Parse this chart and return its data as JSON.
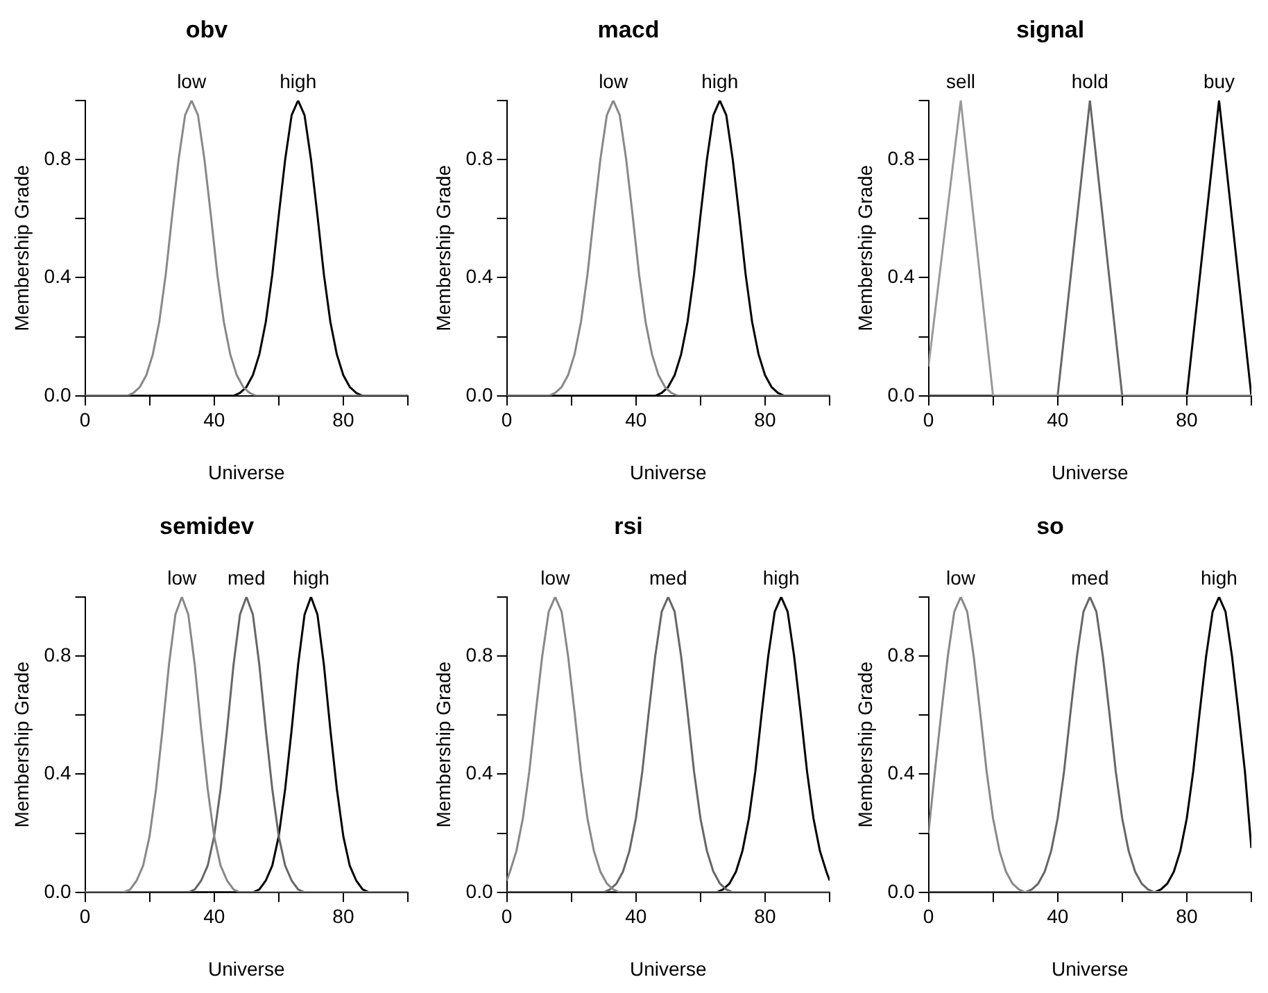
{
  "chart_data": [
    {
      "type": "line",
      "title": "obv",
      "xlabel": "Universe",
      "ylabel": "Membership Grade",
      "xlim": [
        0,
        100
      ],
      "ylim": [
        0,
        1
      ],
      "xticks": [
        0,
        {
          "value": 20,
          "label": null
        },
        40,
        {
          "value": 60,
          "label": null
        },
        80,
        {
          "value": 100,
          "label": null
        }
      ],
      "yticks": [
        {
          "value": 0,
          "label": "0.0"
        },
        {
          "value": 0.2,
          "label": null
        },
        {
          "value": 0.4,
          "label": "0.4"
        },
        {
          "value": 0.6,
          "label": null
        },
        {
          "value": 0.8,
          "label": "0.8"
        },
        {
          "value": 1,
          "label": null
        }
      ],
      "grid": false,
      "marker": "none",
      "series": [
        {
          "name": "low",
          "color": "#888888",
          "x": [
            0,
            13,
            15,
            17,
            19,
            21,
            23,
            25,
            27,
            29,
            31,
            33,
            35,
            37,
            39,
            41,
            43,
            45,
            47,
            49,
            51,
            53,
            100
          ],
          "values": [
            0,
            0,
            0.01,
            0.03,
            0.07,
            0.14,
            0.25,
            0.41,
            0.61,
            0.8,
            0.95,
            1,
            0.95,
            0.8,
            0.61,
            0.41,
            0.25,
            0.14,
            0.07,
            0.03,
            0.01,
            0,
            0
          ]
        },
        {
          "name": "high",
          "color": "#000000",
          "x": [
            0,
            46,
            48,
            50,
            52,
            54,
            56,
            58,
            60,
            62,
            64,
            66,
            68,
            70,
            72,
            74,
            76,
            78,
            80,
            82,
            84,
            86,
            100
          ],
          "values": [
            0,
            0,
            0.01,
            0.03,
            0.07,
            0.14,
            0.25,
            0.41,
            0.61,
            0.8,
            0.95,
            1,
            0.95,
            0.8,
            0.61,
            0.41,
            0.25,
            0.14,
            0.07,
            0.03,
            0.01,
            0,
            0
          ]
        }
      ]
    },
    {
      "type": "line",
      "title": "macd",
      "xlabel": "Universe",
      "ylabel": "Membership Grade",
      "xlim": [
        0,
        100
      ],
      "ylim": [
        0,
        1
      ],
      "xticks": [
        0,
        {
          "value": 20,
          "label": null
        },
        40,
        {
          "value": 60,
          "label": null
        },
        80,
        {
          "value": 100,
          "label": null
        }
      ],
      "yticks": [
        {
          "value": 0,
          "label": "0.0"
        },
        {
          "value": 0.2,
          "label": null
        },
        {
          "value": 0.4,
          "label": "0.4"
        },
        {
          "value": 0.6,
          "label": null
        },
        {
          "value": 0.8,
          "label": "0.8"
        },
        {
          "value": 1,
          "label": null
        }
      ],
      "grid": false,
      "marker": "none",
      "series": [
        {
          "name": "low",
          "color": "#888888",
          "x": [
            0,
            13,
            15,
            17,
            19,
            21,
            23,
            25,
            27,
            29,
            31,
            33,
            35,
            37,
            39,
            41,
            43,
            45,
            47,
            49,
            51,
            53,
            100
          ],
          "values": [
            0,
            0,
            0.01,
            0.03,
            0.07,
            0.14,
            0.25,
            0.41,
            0.61,
            0.8,
            0.95,
            1,
            0.95,
            0.8,
            0.61,
            0.41,
            0.25,
            0.14,
            0.07,
            0.03,
            0.01,
            0,
            0
          ]
        },
        {
          "name": "high",
          "color": "#000000",
          "x": [
            0,
            46,
            48,
            50,
            52,
            54,
            56,
            58,
            60,
            62,
            64,
            66,
            68,
            70,
            72,
            74,
            76,
            78,
            80,
            82,
            84,
            86,
            100
          ],
          "values": [
            0,
            0,
            0.01,
            0.03,
            0.07,
            0.14,
            0.25,
            0.41,
            0.61,
            0.8,
            0.95,
            1,
            0.95,
            0.8,
            0.61,
            0.41,
            0.25,
            0.14,
            0.07,
            0.03,
            0.01,
            0,
            0
          ]
        }
      ]
    },
    {
      "type": "line",
      "title": "signal",
      "xlabel": "Universe",
      "ylabel": "Membership Grade",
      "xlim": [
        0,
        100
      ],
      "ylim": [
        0,
        1
      ],
      "xticks": [
        0,
        {
          "value": 20,
          "label": null
        },
        40,
        {
          "value": 60,
          "label": null
        },
        80,
        {
          "value": 100,
          "label": null
        }
      ],
      "yticks": [
        {
          "value": 0,
          "label": "0.0"
        },
        {
          "value": 0.2,
          "label": null
        },
        {
          "value": 0.4,
          "label": "0.4"
        },
        {
          "value": 0.6,
          "label": null
        },
        {
          "value": 0.8,
          "label": "0.8"
        },
        {
          "value": 1,
          "label": null
        }
      ],
      "grid": false,
      "marker": "none",
      "series": [
        {
          "name": "sell",
          "color": "#999999",
          "x": [
            0,
            2,
            4,
            6,
            8,
            10,
            12,
            14,
            16,
            18,
            20,
            100
          ],
          "values": [
            0.1,
            0.28,
            0.46,
            0.64,
            0.82,
            1,
            0.8,
            0.6,
            0.4,
            0.2,
            0,
            0
          ]
        },
        {
          "name": "hold",
          "color": "#666666",
          "x": [
            0,
            40,
            42,
            44,
            46,
            48,
            50,
            52,
            54,
            56,
            58,
            60,
            100
          ],
          "values": [
            0,
            0,
            0.2,
            0.4,
            0.6,
            0.8,
            1,
            0.8,
            0.6,
            0.4,
            0.2,
            0,
            0
          ]
        },
        {
          "name": "buy",
          "color": "#000000",
          "x": [
            0,
            80,
            82,
            84,
            86,
            88,
            90,
            92,
            94,
            96,
            98,
            100
          ],
          "values": [
            0,
            0,
            0.2,
            0.4,
            0.6,
            0.8,
            1,
            0.8,
            0.6,
            0.4,
            0.2,
            0
          ]
        }
      ]
    },
    {
      "type": "line",
      "title": "semidev",
      "xlabel": "Universe",
      "ylabel": "Membership Grade",
      "xlim": [
        0,
        100
      ],
      "ylim": [
        0,
        1
      ],
      "xticks": [
        0,
        {
          "value": 20,
          "label": null
        },
        40,
        {
          "value": 60,
          "label": null
        },
        80,
        {
          "value": 100,
          "label": null
        }
      ],
      "yticks": [
        {
          "value": 0,
          "label": "0.0"
        },
        {
          "value": 0.2,
          "label": null
        },
        {
          "value": 0.4,
          "label": "0.4"
        },
        {
          "value": 0.6,
          "label": null
        },
        {
          "value": 0.8,
          "label": "0.8"
        },
        {
          "value": 1,
          "label": null
        }
      ],
      "grid": false,
      "marker": "none",
      "series": [
        {
          "name": "low",
          "color": "#888888",
          "x": [
            0,
            12,
            14,
            16,
            18,
            20,
            22,
            24,
            26,
            28,
            30,
            32,
            34,
            36,
            38,
            40,
            42,
            44,
            46,
            48,
            100
          ],
          "values": [
            0,
            0,
            0.01,
            0.04,
            0.09,
            0.19,
            0.35,
            0.55,
            0.77,
            0.94,
            1,
            0.94,
            0.77,
            0.55,
            0.35,
            0.19,
            0.09,
            0.04,
            0.01,
            0,
            0
          ]
        },
        {
          "name": "med",
          "color": "#666666",
          "x": [
            0,
            32,
            34,
            36,
            38,
            40,
            42,
            44,
            46,
            48,
            50,
            52,
            54,
            56,
            58,
            60,
            62,
            64,
            66,
            68,
            100
          ],
          "values": [
            0,
            0,
            0.01,
            0.04,
            0.09,
            0.19,
            0.35,
            0.55,
            0.77,
            0.94,
            1,
            0.94,
            0.77,
            0.55,
            0.35,
            0.19,
            0.09,
            0.04,
            0.01,
            0,
            0
          ]
        },
        {
          "name": "high",
          "color": "#000000",
          "x": [
            0,
            52,
            54,
            56,
            58,
            60,
            62,
            64,
            66,
            68,
            70,
            72,
            74,
            76,
            78,
            80,
            82,
            84,
            86,
            88,
            100
          ],
          "values": [
            0,
            0,
            0.01,
            0.04,
            0.09,
            0.19,
            0.35,
            0.55,
            0.77,
            0.94,
            1,
            0.94,
            0.77,
            0.55,
            0.35,
            0.19,
            0.09,
            0.04,
            0.01,
            0,
            0
          ]
        }
      ]
    },
    {
      "type": "line",
      "title": "rsi",
      "xlabel": "Universe",
      "ylabel": "Membership Grade",
      "xlim": [
        0,
        100
      ],
      "ylim": [
        0,
        1
      ],
      "xticks": [
        0,
        {
          "value": 20,
          "label": null
        },
        40,
        {
          "value": 60,
          "label": null
        },
        80,
        {
          "value": 100,
          "label": null
        }
      ],
      "yticks": [
        {
          "value": 0,
          "label": "0.0"
        },
        {
          "value": 0.2,
          "label": null
        },
        {
          "value": 0.4,
          "label": "0.4"
        },
        {
          "value": 0.6,
          "label": null
        },
        {
          "value": 0.8,
          "label": "0.8"
        },
        {
          "value": 1,
          "label": null
        }
      ],
      "grid": false,
      "marker": "none",
      "series": [
        {
          "name": "low",
          "color": "#888888",
          "x": [
            0,
            1,
            3,
            5,
            7,
            9,
            11,
            13,
            15,
            17,
            19,
            21,
            23,
            25,
            27,
            29,
            31,
            33,
            35,
            100
          ],
          "values": [
            0.04,
            0.07,
            0.14,
            0.25,
            0.41,
            0.61,
            0.8,
            0.95,
            1,
            0.95,
            0.8,
            0.61,
            0.41,
            0.25,
            0.14,
            0.07,
            0.03,
            0.01,
            0,
            0
          ]
        },
        {
          "name": "med",
          "color": "#666666",
          "x": [
            0,
            30,
            32,
            34,
            36,
            38,
            40,
            42,
            44,
            46,
            48,
            50,
            52,
            54,
            56,
            58,
            60,
            62,
            64,
            66,
            68,
            70,
            100
          ],
          "values": [
            0,
            0,
            0.01,
            0.03,
            0.07,
            0.14,
            0.25,
            0.41,
            0.61,
            0.8,
            0.95,
            1,
            0.95,
            0.8,
            0.61,
            0.41,
            0.25,
            0.14,
            0.07,
            0.03,
            0.01,
            0,
            0
          ]
        },
        {
          "name": "high",
          "color": "#000000",
          "x": [
            0,
            65,
            67,
            69,
            71,
            73,
            75,
            77,
            79,
            81,
            83,
            85,
            87,
            89,
            91,
            93,
            95,
            97,
            99,
            100
          ],
          "values": [
            0,
            0,
            0.01,
            0.03,
            0.07,
            0.14,
            0.25,
            0.41,
            0.61,
            0.8,
            0.95,
            1,
            0.95,
            0.8,
            0.61,
            0.41,
            0.25,
            0.14,
            0.07,
            0.04
          ]
        }
      ]
    },
    {
      "type": "line",
      "title": "so",
      "xlabel": "Universe",
      "ylabel": "Membership Grade",
      "xlim": [
        0,
        100
      ],
      "ylim": [
        0,
        1
      ],
      "xticks": [
        0,
        {
          "value": 20,
          "label": null
        },
        40,
        {
          "value": 60,
          "label": null
        },
        80,
        {
          "value": 100,
          "label": null
        }
      ],
      "yticks": [
        {
          "value": 0,
          "label": "0.0"
        },
        {
          "value": 0.2,
          "label": null
        },
        {
          "value": 0.4,
          "label": "0.4"
        },
        {
          "value": 0.6,
          "label": null
        },
        {
          "value": 0.8,
          "label": "0.8"
        },
        {
          "value": 1,
          "label": null
        }
      ],
      "grid": false,
      "marker": "none",
      "series": [
        {
          "name": "low",
          "color": "#888888",
          "x": [
            0,
            2,
            4,
            6,
            8,
            10,
            12,
            14,
            16,
            18,
            20,
            22,
            24,
            26,
            28,
            30,
            100
          ],
          "values": [
            0.2,
            0.41,
            0.61,
            0.8,
            0.95,
            1,
            0.95,
            0.8,
            0.61,
            0.41,
            0.25,
            0.14,
            0.07,
            0.03,
            0.01,
            0,
            0
          ]
        },
        {
          "name": "med",
          "color": "#666666",
          "x": [
            0,
            30,
            32,
            34,
            36,
            38,
            40,
            42,
            44,
            46,
            48,
            50,
            52,
            54,
            56,
            58,
            60,
            62,
            64,
            66,
            68,
            70,
            100
          ],
          "values": [
            0,
            0,
            0.01,
            0.03,
            0.07,
            0.14,
            0.25,
            0.41,
            0.61,
            0.8,
            0.95,
            1,
            0.95,
            0.8,
            0.61,
            0.41,
            0.25,
            0.14,
            0.07,
            0.03,
            0.01,
            0,
            0
          ]
        },
        {
          "name": "high",
          "color": "#000000",
          "x": [
            0,
            70,
            72,
            74,
            76,
            78,
            80,
            82,
            84,
            86,
            88,
            90,
            92,
            94,
            96,
            98,
            100
          ],
          "values": [
            0,
            0,
            0.01,
            0.03,
            0.07,
            0.14,
            0.25,
            0.41,
            0.61,
            0.8,
            0.95,
            1,
            0.95,
            0.8,
            0.61,
            0.41,
            0.15
          ]
        }
      ]
    }
  ]
}
